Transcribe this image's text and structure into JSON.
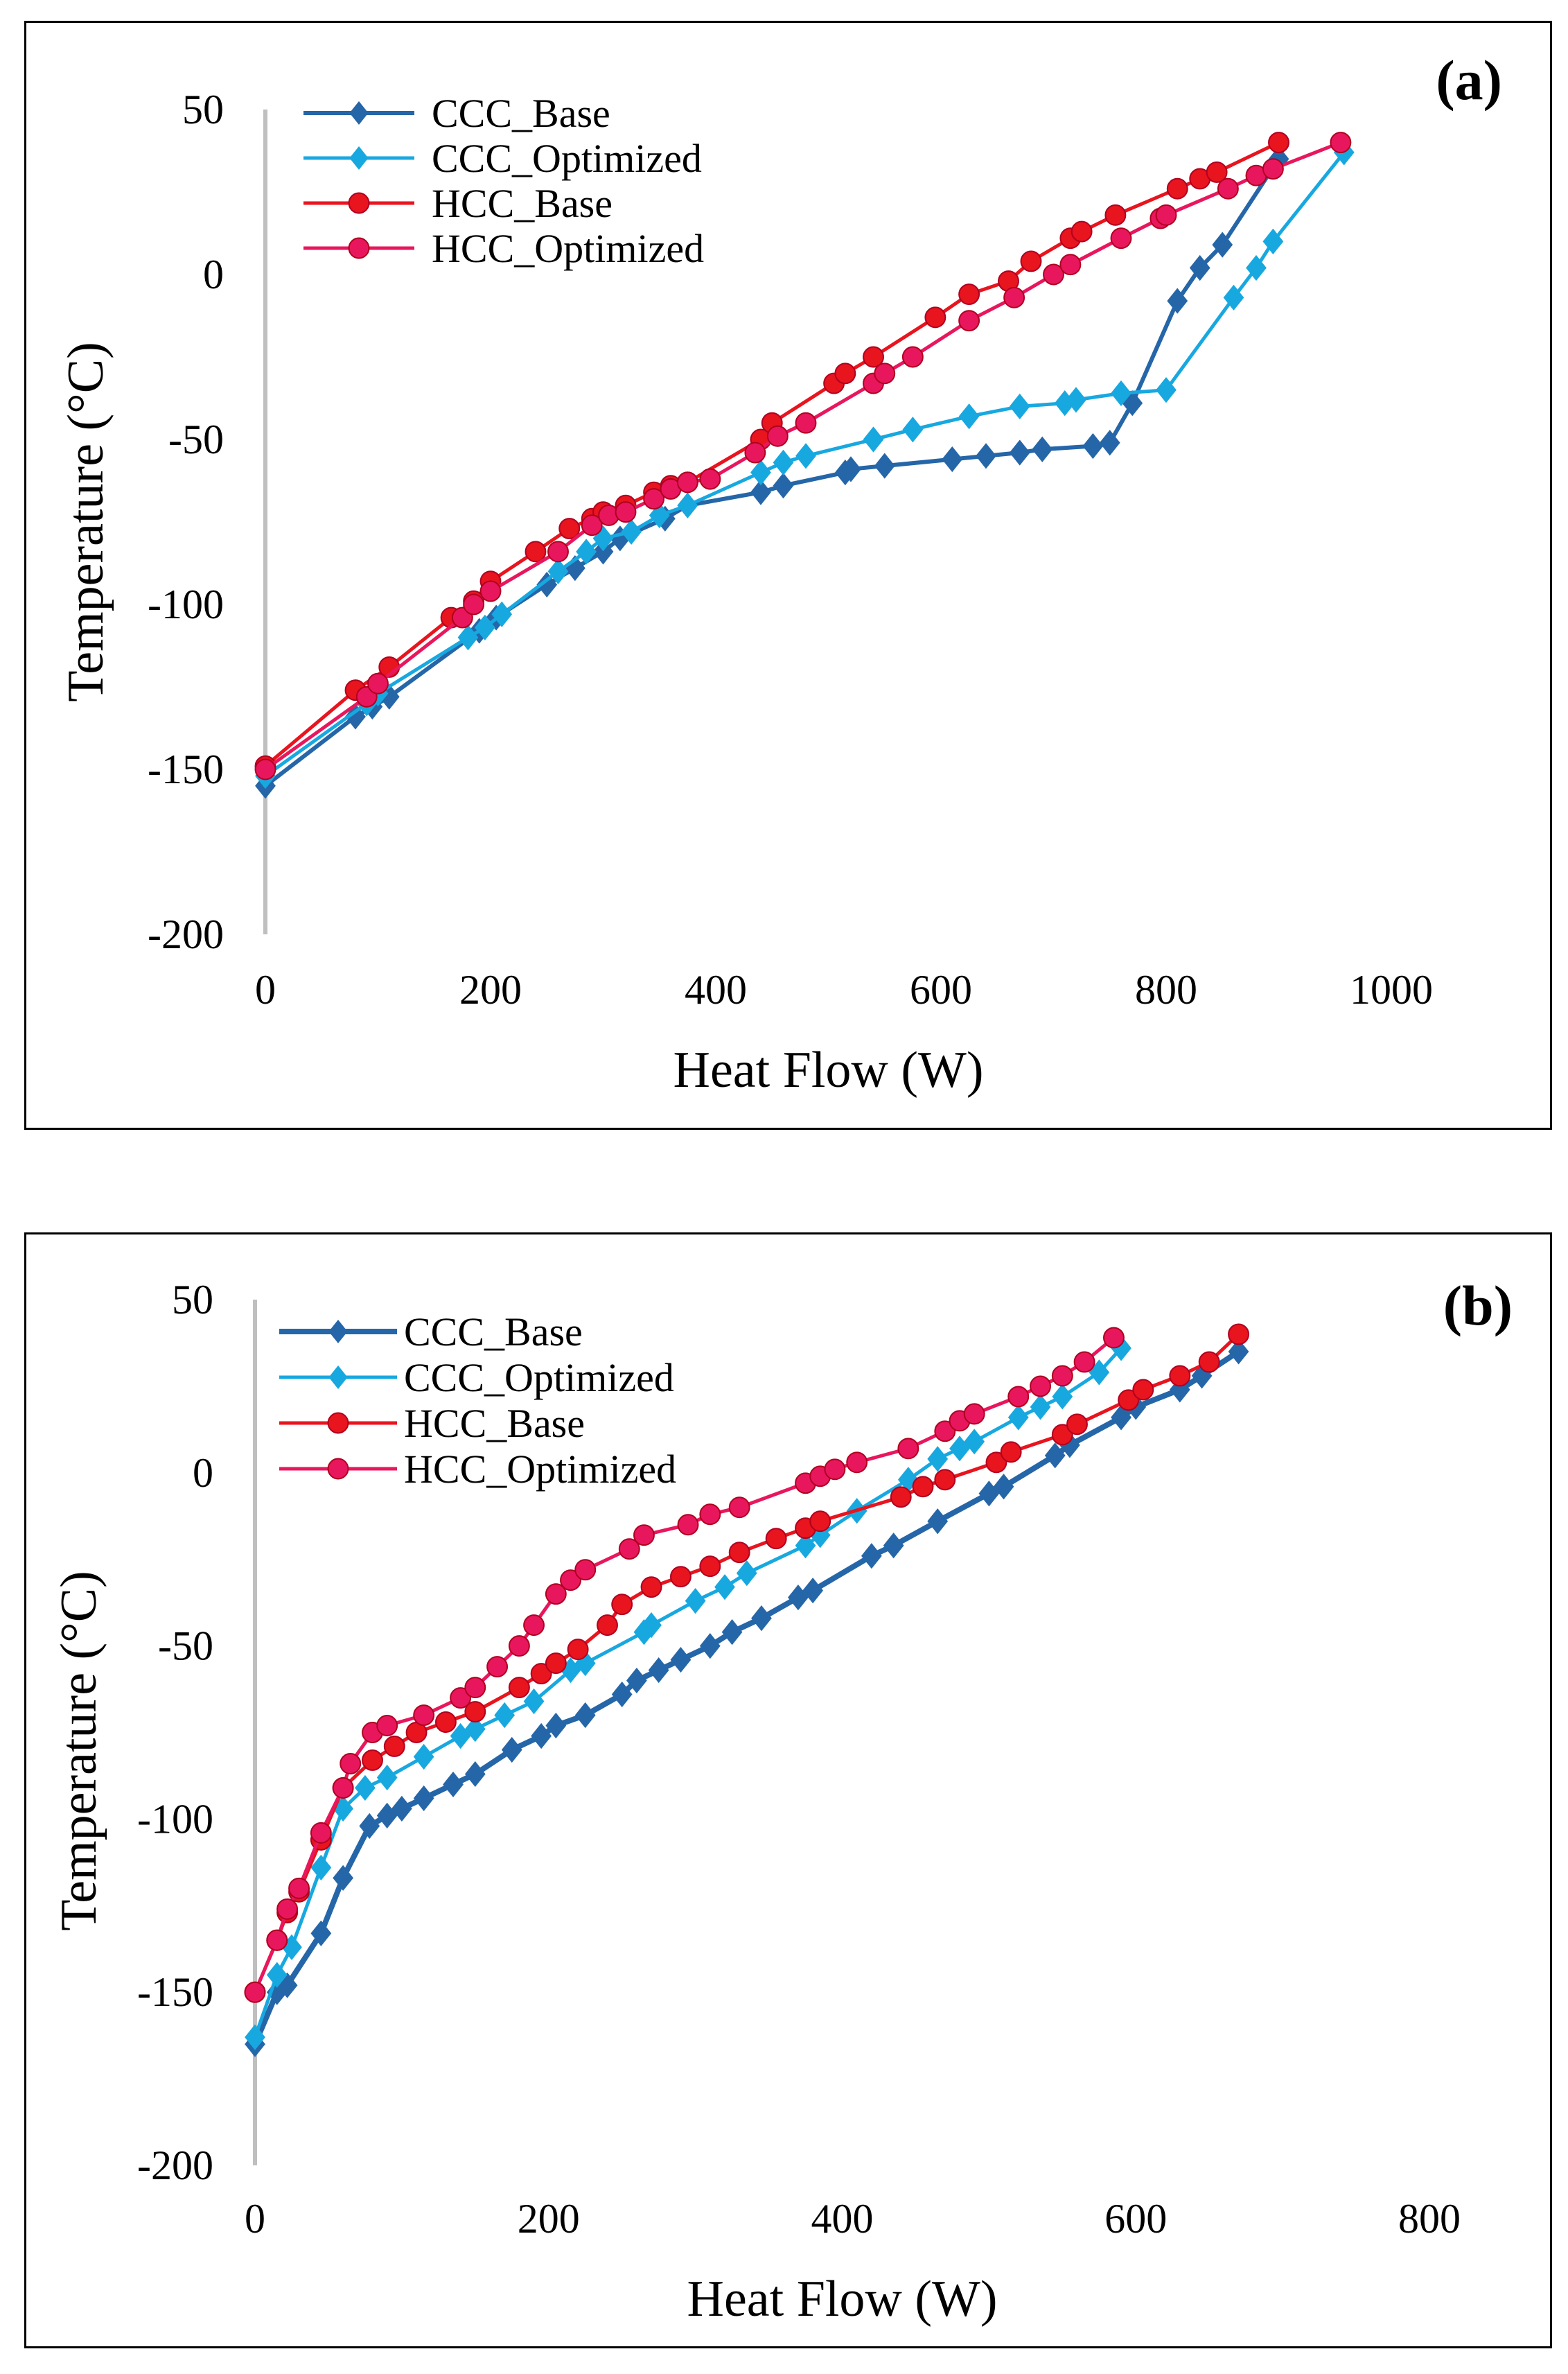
{
  "panels": [
    {
      "chart_data": {
        "type": "line",
        "panel_label": "(a)",
        "xlabel": "Heat Flow (W)",
        "ylabel": "Temperature (°C)",
        "xlim": [
          0,
          1000
        ],
        "ylim": [
          -200,
          50
        ],
        "xticks": [
          0,
          200,
          400,
          600,
          800,
          1000
        ],
        "yticks": [
          -200,
          -150,
          -100,
          -50,
          0,
          50
        ],
        "legend_position": "top-left",
        "series": [
          {
            "name": "CCC_Base",
            "color": "#2566a8",
            "marker": "diamond",
            "line_width": 6,
            "x": [
              0,
              80,
              95,
              110,
              190,
              205,
              250,
              275,
              300,
              315,
              355,
              375,
              440,
              460,
              515,
              520,
              550,
              610,
              640,
              670,
              690,
              735,
              750,
              770,
              810,
              830,
              850,
              900
            ],
            "y": [
              -155,
              -134,
              -131,
              -128,
              -108,
              -104,
              -94,
              -89,
              -84,
              -80,
              -74,
              -70,
              -66,
              -64,
              -60,
              -59,
              -58,
              -56,
              -55,
              -54,
              -53,
              -52,
              -51,
              -39,
              -8,
              2,
              9,
              35
            ]
          },
          {
            "name": "CCC_Optimized",
            "color": "#18a8e0",
            "marker": "diamond",
            "line_width": 5,
            "x": [
              0,
              90,
              100,
              180,
              195,
              210,
              260,
              285,
              300,
              325,
              350,
              375,
              440,
              460,
              480,
              540,
              575,
              625,
              670,
              710,
              720,
              760,
              800,
              860,
              880,
              895,
              958
            ],
            "y": [
              -152,
              -130,
              -127,
              -110,
              -107,
              -103,
              -90,
              -84,
              -80,
              -78,
              -73,
              -70,
              -60,
              -57,
              -55,
              -50,
              -47,
              -43,
              -40,
              -39,
              -38,
              -36,
              -35,
              -7,
              2,
              10,
              37
            ]
          },
          {
            "name": "HCC_Base",
            "color": "#e8141e",
            "marker": "circle",
            "line_width": 5,
            "x": [
              0,
              80,
              110,
              165,
              185,
              200,
              240,
              270,
              290,
              300,
              320,
              345,
              360,
              375,
              440,
              450,
              505,
              515,
              540,
              595,
              625,
              660,
              680,
              715,
              725,
              755,
              810,
              830,
              845,
              900
            ],
            "y": [
              -149,
              -126,
              -119,
              -104,
              -99,
              -93,
              -84,
              -77,
              -74,
              -72,
              -70,
              -66,
              -64,
              -63,
              -50,
              -45,
              -33,
              -30,
              -25,
              -13,
              -6,
              -2,
              4,
              11,
              13,
              18,
              26,
              29,
              31,
              40
            ]
          },
          {
            "name": "HCC_Optimized",
            "color": "#e8175d",
            "marker": "circle",
            "line_width": 5,
            "x": [
              0,
              90,
              100,
              175,
              185,
              200,
              260,
              290,
              305,
              320,
              345,
              360,
              375,
              395,
              435,
              455,
              480,
              540,
              550,
              575,
              625,
              665,
              700,
              715,
              760,
              795,
              800,
              855,
              880,
              895,
              955
            ],
            "y": [
              -150,
              -128,
              -124,
              -104,
              -100,
              -96,
              -84,
              -76,
              -73,
              -72,
              -68,
              -65,
              -63,
              -62,
              -54,
              -49,
              -45,
              -33,
              -30,
              -25,
              -14,
              -7,
              0,
              3,
              11,
              17,
              18,
              26,
              30,
              32,
              40
            ]
          }
        ]
      }
    },
    {
      "chart_data": {
        "type": "line",
        "panel_label": "(b)",
        "xlabel": "Heat Flow (W)",
        "ylabel": "Temperature (°C)",
        "xlim": [
          0,
          800
        ],
        "ylim": [
          -200,
          50
        ],
        "xticks": [
          0,
          200,
          400,
          600,
          800
        ],
        "yticks": [
          -200,
          -150,
          -100,
          -50,
          0,
          50
        ],
        "legend_position": "top-left",
        "series": [
          {
            "name": "CCC_Base",
            "color": "#2566a8",
            "marker": "diamond",
            "line_width": 8,
            "x": [
              0,
              15,
              22,
              45,
              60,
              78,
              90,
              100,
              115,
              135,
              150,
              175,
              195,
              205,
              225,
              250,
              260,
              275,
              290,
              310,
              325,
              345,
              370,
              380,
              420,
              435,
              465,
              500,
              510,
              545,
              555,
              590,
              600,
              630,
              645,
              670
            ],
            "y": [
              -165,
              -150,
              -148,
              -133,
              -117,
              -102,
              -99,
              -97,
              -94,
              -90,
              -87,
              -80,
              -76,
              -73,
              -70,
              -64,
              -60,
              -57,
              -54,
              -50,
              -46,
              -42,
              -36,
              -34,
              -24,
              -21,
              -14,
              -6,
              -4,
              5,
              8,
              16,
              19,
              24,
              28,
              35
            ]
          },
          {
            "name": "CCC_Optimized",
            "color": "#18a8e0",
            "marker": "diamond",
            "line_width": 5,
            "x": [
              0,
              15,
              25,
              45,
              60,
              75,
              90,
              115,
              140,
              150,
              170,
              190,
              215,
              225,
              265,
              270,
              300,
              320,
              335,
              375,
              385,
              410,
              445,
              465,
              480,
              490,
              520,
              535,
              550,
              575,
              590
            ],
            "y": [
              -163,
              -145,
              -137,
              -114,
              -97,
              -91,
              -88,
              -82,
              -76,
              -74,
              -70,
              -66,
              -57,
              -55,
              -46,
              -44,
              -37,
              -33,
              -29,
              -21,
              -18,
              -11,
              -2,
              4,
              7,
              9,
              16,
              19,
              22,
              29,
              36
            ]
          },
          {
            "name": "HCC_Base",
            "color": "#e8141e",
            "marker": "circle",
            "line_width": 5,
            "x": [
              0,
              15,
              22,
              30,
              45,
              60,
              80,
              95,
              110,
              130,
              150,
              180,
              195,
              205,
              220,
              240,
              250,
              270,
              290,
              310,
              330,
              355,
              375,
              385,
              440,
              455,
              470,
              505,
              515,
              550,
              560,
              595,
              605,
              630,
              650,
              670
            ],
            "y": [
              -150,
              -135,
              -127,
              -121,
              -106,
              -91,
              -83,
              -79,
              -75,
              -72,
              -69,
              -62,
              -58,
              -55,
              -51,
              -44,
              -38,
              -33,
              -30,
              -27,
              -23,
              -19,
              -16,
              -14,
              -7,
              -4,
              -2,
              3,
              6,
              11,
              14,
              21,
              24,
              28,
              32,
              40
            ]
          },
          {
            "name": "HCC_Optimized",
            "color": "#e8175d",
            "marker": "circle",
            "line_width": 5,
            "x": [
              0,
              15,
              22,
              30,
              45,
              60,
              65,
              80,
              90,
              115,
              140,
              150,
              165,
              180,
              190,
              205,
              215,
              225,
              255,
              265,
              295,
              310,
              330,
              375,
              385,
              395,
              410,
              445,
              470,
              480,
              490,
              520,
              535,
              550,
              565,
              585
            ],
            "y": [
              -150,
              -135,
              -126,
              -120,
              -104,
              -91,
              -84,
              -75,
              -73,
              -70,
              -65,
              -62,
              -56,
              -50,
              -44,
              -35,
              -31,
              -28,
              -22,
              -18,
              -15,
              -12,
              -10,
              -3,
              -1,
              1,
              3,
              7,
              12,
              15,
              17,
              22,
              25,
              28,
              32,
              39
            ]
          }
        ]
      }
    }
  ]
}
